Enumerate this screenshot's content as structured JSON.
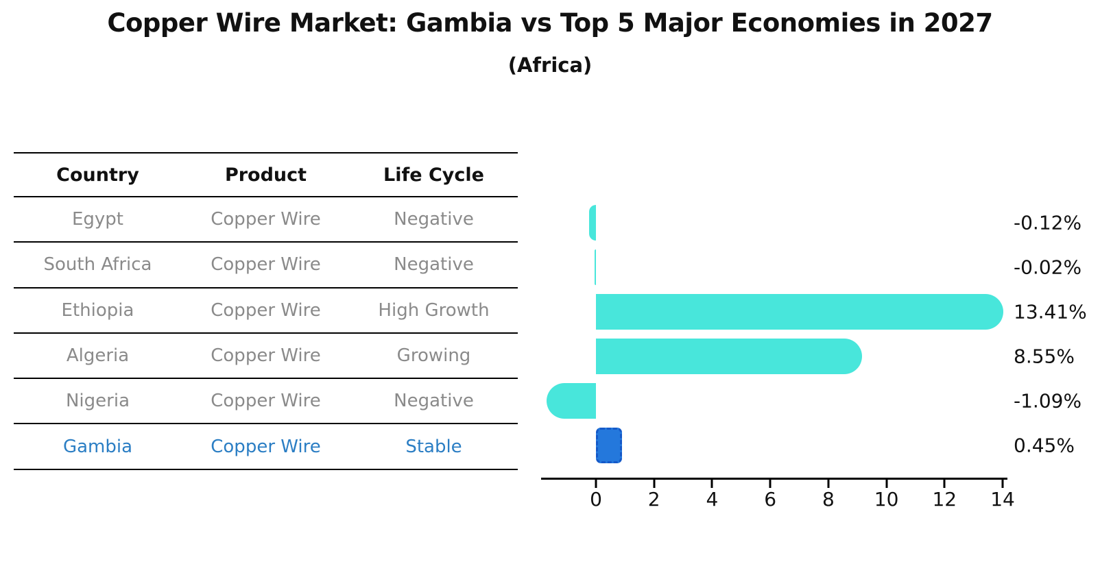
{
  "chart_data": {
    "type": "bar",
    "orientation": "horizontal",
    "title": "Copper Wire Market: Gambia vs Top 5 Major Economies in 2027",
    "subtitle": "(Africa)",
    "categories": [
      "Egypt",
      "South Africa",
      "Ethiopia",
      "Algeria",
      "Nigeria",
      "Gambia"
    ],
    "values": [
      -0.12,
      -0.02,
      13.41,
      8.55,
      -1.09,
      0.45
    ],
    "value_labels": [
      "-0.12%",
      "-0.02%",
      "13.41%",
      "8.55%",
      "-1.09%",
      "0.45%"
    ],
    "xlabel": "",
    "ylabel": "",
    "xticks": [
      0,
      2,
      4,
      6,
      8,
      10,
      12,
      14
    ],
    "xlim": [
      -1.9,
      14.2
    ],
    "grid": false,
    "legend": "none",
    "bar_color": "#48e6db",
    "highlight_index": 5,
    "highlight_bar_color": "#2478dc",
    "highlight_bar_border_color": "#1559c8",
    "label_color": "#111111"
  },
  "table": {
    "columns": [
      "Country",
      "Product",
      "Life Cycle"
    ],
    "rows": [
      {
        "cells": [
          "Egypt",
          "Copper Wire",
          "Negative"
        ],
        "highlighted": false
      },
      {
        "cells": [
          "South Africa",
          "Copper Wire",
          "Negative"
        ],
        "highlighted": false
      },
      {
        "cells": [
          "Ethiopia",
          "Copper Wire",
          "High Growth"
        ],
        "highlighted": false
      },
      {
        "cells": [
          "Algeria",
          "Copper Wire",
          "Growing"
        ],
        "highlighted": false
      },
      {
        "cells": [
          "Nigeria",
          "Copper Wire",
          "Negative"
        ],
        "highlighted": false
      },
      {
        "cells": [
          "Gambia",
          "Copper Wire",
          "Stable"
        ],
        "highlighted": true
      }
    ],
    "row_text_color": "#8a8a8a",
    "highlight_text_color": "#2b7ec4"
  }
}
